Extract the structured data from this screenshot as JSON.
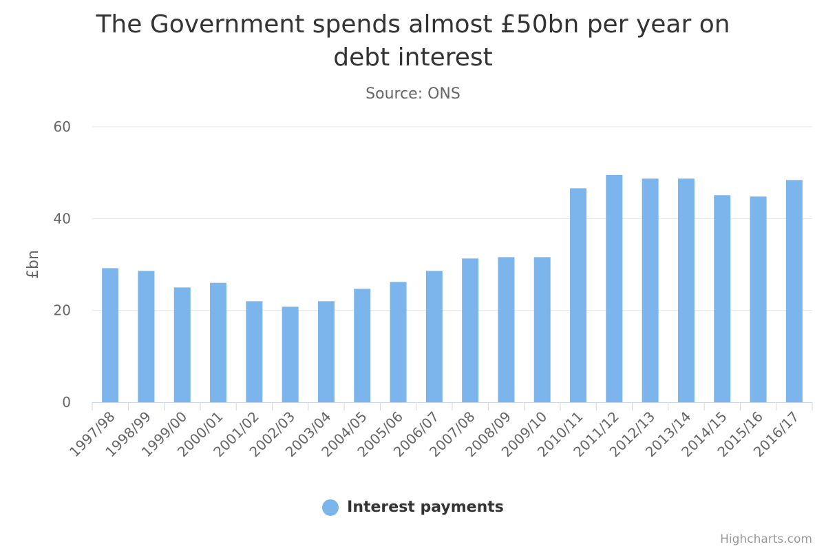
{
  "chart_data": {
    "type": "bar",
    "title": "The Government spends almost £50bn per year on debt interest",
    "subtitle": "Source: ONS",
    "ylabel": "£bn",
    "ylim": [
      0,
      60
    ],
    "yticks": [
      0,
      20,
      40,
      60
    ],
    "grid": true,
    "legend_position": "bottom",
    "categories": [
      "1997/98",
      "1998/99",
      "1999/00",
      "2000/01",
      "2001/02",
      "2002/03",
      "2003/04",
      "2004/05",
      "2005/06",
      "2006/07",
      "2007/08",
      "2008/09",
      "2009/10",
      "2010/11",
      "2011/12",
      "2012/13",
      "2013/14",
      "2014/15",
      "2015/16",
      "2016/17"
    ],
    "series": [
      {
        "name": "Interest payments",
        "color": "#7cb5ec",
        "values": [
          29.2,
          28.6,
          25.0,
          26.0,
          22.0,
          20.8,
          22.0,
          24.7,
          26.2,
          28.6,
          31.3,
          31.6,
          31.6,
          46.6,
          49.5,
          48.7,
          48.7,
          45.1,
          44.8,
          48.4
        ]
      }
    ]
  },
  "credits": "Highcharts.com"
}
